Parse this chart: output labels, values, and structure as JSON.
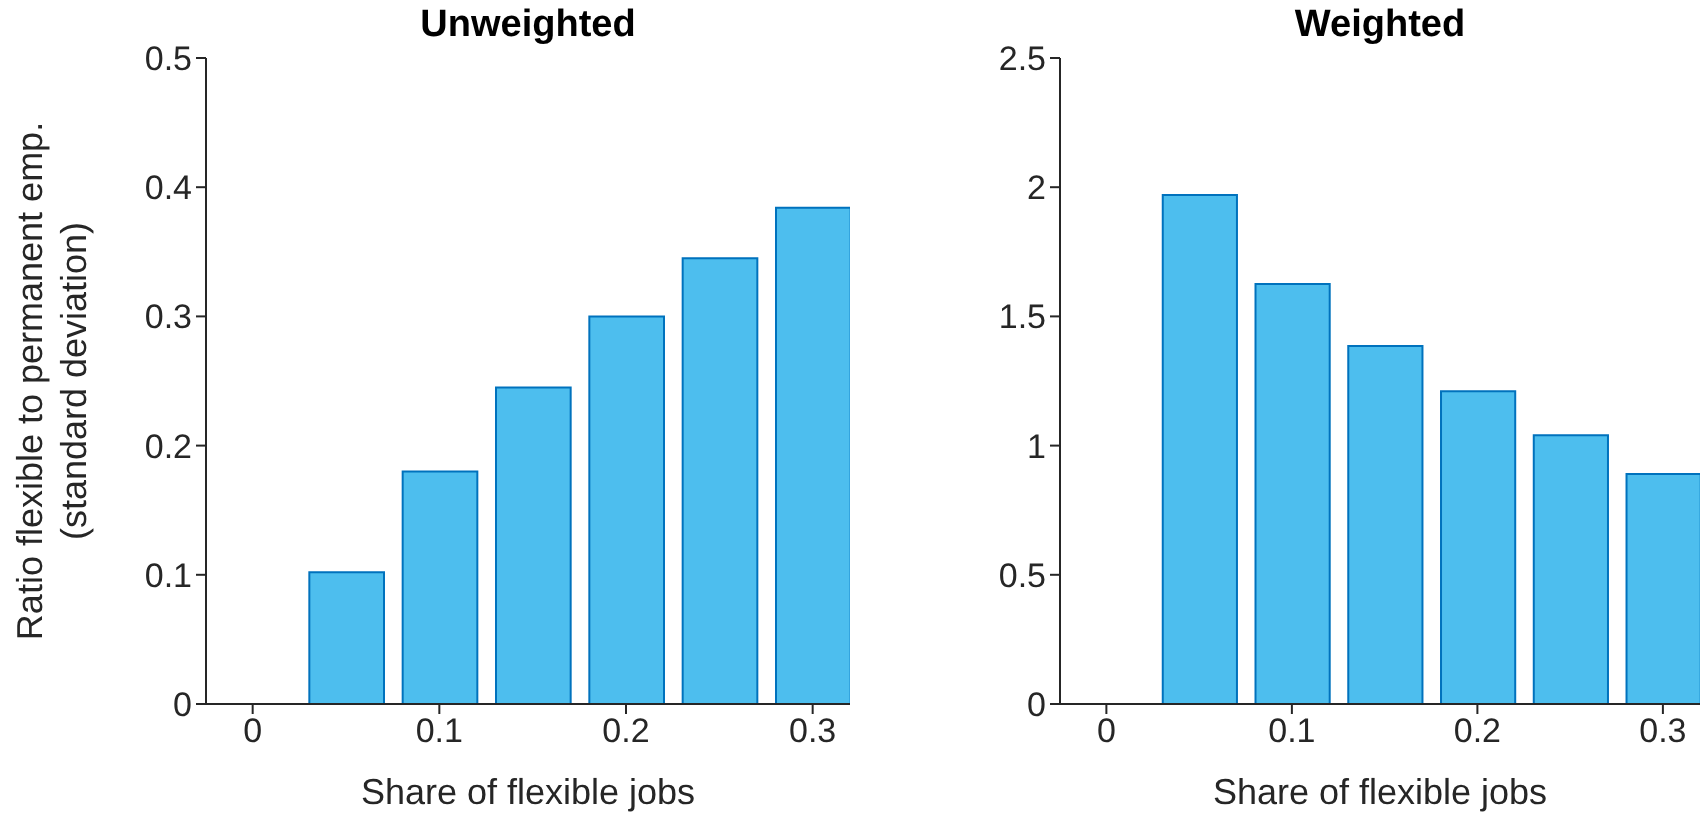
{
  "chart_data": [
    {
      "type": "bar",
      "title": "Unweighted",
      "xlabel": "Share of flexible jobs",
      "ylabel": "Ratio flexible to permanent emp.\n(standard deviation)",
      "x": [
        0.05,
        0.1,
        0.15,
        0.2,
        0.25,
        0.3
      ],
      "color": "#4dbeee",
      "values": [
        0.102,
        0.18,
        0.245,
        0.3,
        0.345,
        0.384
      ],
      "xlim": [
        -0.025,
        0.32
      ],
      "xticks": [
        0,
        0.1,
        0.2,
        0.3
      ],
      "ylim": [
        0,
        0.5
      ],
      "yticks": [
        0,
        0.1,
        0.2,
        0.3,
        0.4,
        0.5
      ],
      "grid": false
    },
    {
      "type": "bar",
      "title": "Weighted",
      "xlabel": "Share of flexible jobs",
      "x": [
        0.05,
        0.1,
        0.15,
        0.2,
        0.25,
        0.3
      ],
      "color": "#4dbeee",
      "values": [
        1.97,
        1.625,
        1.385,
        1.21,
        1.04,
        0.89
      ],
      "xlim": [
        -0.025,
        0.32
      ],
      "xticks": [
        0,
        0.1,
        0.2,
        0.3
      ],
      "ylim": [
        0,
        2.5
      ],
      "yticks": [
        0,
        0.5,
        1,
        1.5,
        2,
        2.5
      ],
      "grid": false
    }
  ]
}
